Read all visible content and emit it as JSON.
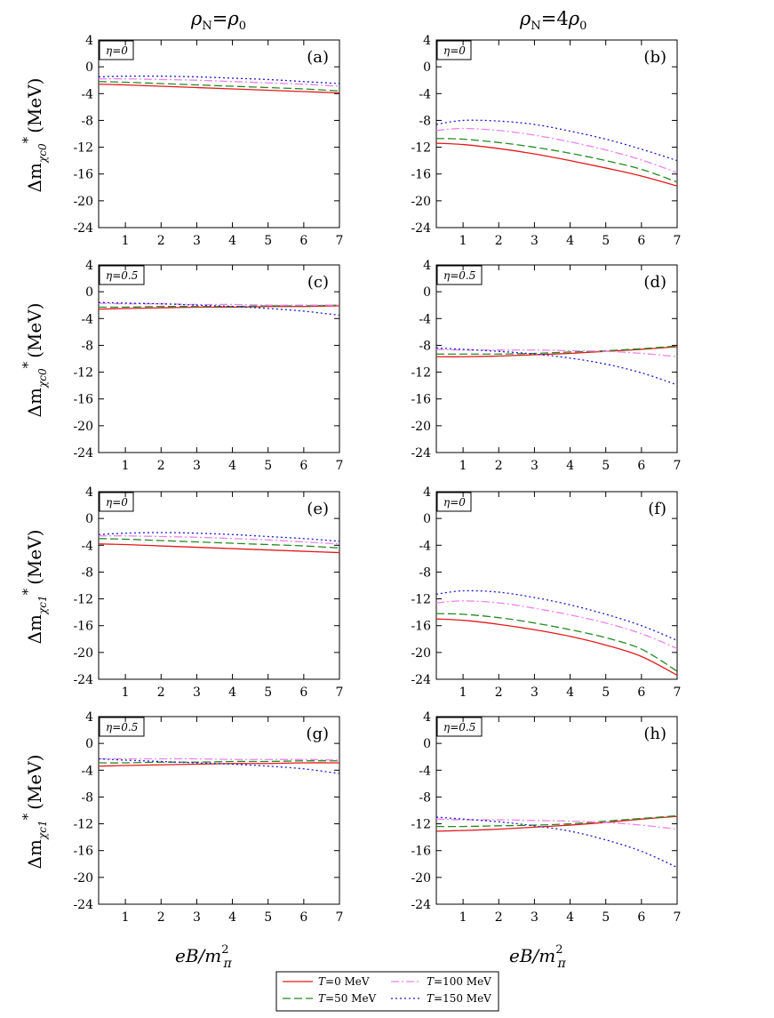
{
  "figure": {
    "col_titles": [
      {
        "rho": "ρ",
        "sub": "N",
        "eq": "=",
        "rhs": "ρ",
        "rhs_sub": "0"
      },
      {
        "rho": "ρ",
        "sub": "N",
        "eq": "=4",
        "rhs": "ρ",
        "rhs_sub": "0"
      }
    ],
    "ylabel": {
      "prefix": "Δm",
      "sup": "*",
      "unit": "(MeV)"
    },
    "ylabel_subs": [
      "χc0",
      "χc0",
      "χc1",
      "χc1"
    ],
    "xlabel": {
      "main": "eB/m",
      "sup": "2",
      "sub": "π"
    },
    "legend": [
      {
        "label": "T=0 MeV",
        "T": "T",
        "rest": "=0 MeV",
        "color": "#e41a1c",
        "dash": "solid"
      },
      {
        "label": "T=100 MeV",
        "T": "T",
        "rest": "=100 MeV",
        "color": "#ee82ee",
        "dash": "dashdot"
      },
      {
        "label": "T=50 MeV",
        "T": "T",
        "rest": "=50 MeV",
        "color": "#228b22",
        "dash": "dashed"
      },
      {
        "label": "T=150 MeV",
        "T": "T",
        "rest": "=150 MeV",
        "color": "#1a1acd",
        "dash": "dotted"
      }
    ]
  },
  "chart_data": [
    {
      "type": "line",
      "panel": "(a)",
      "eta": "η=0",
      "xlim": [
        0.25,
        7
      ],
      "ylim": [
        -24,
        4
      ],
      "xticks": [
        1,
        2,
        3,
        4,
        5,
        6,
        7
      ],
      "yticks": [
        4,
        0,
        -4,
        -8,
        -12,
        -16,
        -20,
        -24
      ],
      "x": [
        0.25,
        1,
        2,
        3,
        4,
        5,
        6,
        7
      ],
      "series": [
        {
          "name": "T=0 MeV",
          "values": [
            -2.6,
            -2.7,
            -2.9,
            -3.1,
            -3.3,
            -3.5,
            -3.7,
            -3.9
          ]
        },
        {
          "name": "T=50 MeV",
          "values": [
            -2.2,
            -2.3,
            -2.5,
            -2.7,
            -2.9,
            -3.1,
            -3.3,
            -3.6
          ]
        },
        {
          "name": "T=100 MeV",
          "values": [
            -1.8,
            -1.8,
            -1.9,
            -2.0,
            -2.2,
            -2.4,
            -2.6,
            -2.9
          ]
        },
        {
          "name": "T=150 MeV",
          "values": [
            -1.5,
            -1.4,
            -1.4,
            -1.5,
            -1.7,
            -1.9,
            -2.2,
            -2.5
          ]
        }
      ]
    },
    {
      "type": "line",
      "panel": "(b)",
      "eta": "η=0",
      "xlim": [
        0.25,
        7
      ],
      "ylim": [
        -24,
        4
      ],
      "xticks": [
        1,
        2,
        3,
        4,
        5,
        6,
        7
      ],
      "yticks": [
        4,
        0,
        -4,
        -8,
        -12,
        -16,
        -20,
        -24
      ],
      "x": [
        0.25,
        1,
        2,
        3,
        4,
        5,
        6,
        7
      ],
      "series": [
        {
          "name": "T=0 MeV",
          "values": [
            -11.4,
            -11.6,
            -12.2,
            -13.0,
            -14.0,
            -15.1,
            -16.3,
            -17.8
          ]
        },
        {
          "name": "T=50 MeV",
          "values": [
            -10.7,
            -10.8,
            -11.3,
            -12.0,
            -12.9,
            -14.0,
            -15.3,
            -17.2
          ]
        },
        {
          "name": "T=100 MeV",
          "values": [
            -9.5,
            -9.2,
            -9.5,
            -10.2,
            -11.2,
            -12.4,
            -13.9,
            -15.8
          ]
        },
        {
          "name": "T=150 MeV",
          "values": [
            -8.6,
            -8.0,
            -8.1,
            -8.6,
            -9.6,
            -10.8,
            -12.3,
            -14.0
          ]
        }
      ]
    },
    {
      "type": "line",
      "panel": "(c)",
      "eta": "η=0.5",
      "xlim": [
        0.25,
        7
      ],
      "ylim": [
        -24,
        4
      ],
      "xticks": [
        1,
        2,
        3,
        4,
        5,
        6,
        7
      ],
      "yticks": [
        4,
        0,
        -4,
        -8,
        -12,
        -16,
        -20,
        -24
      ],
      "x": [
        0.25,
        1,
        2,
        3,
        4,
        5,
        6,
        7
      ],
      "series": [
        {
          "name": "T=0 MeV",
          "values": [
            -2.6,
            -2.5,
            -2.4,
            -2.3,
            -2.3,
            -2.2,
            -2.2,
            -2.1
          ]
        },
        {
          "name": "T=50 MeV",
          "values": [
            -2.3,
            -2.3,
            -2.2,
            -2.2,
            -2.2,
            -2.1,
            -2.1,
            -2.0
          ]
        },
        {
          "name": "T=100 MeV",
          "values": [
            -1.7,
            -1.8,
            -1.8,
            -1.9,
            -1.9,
            -2.0,
            -2.0,
            -2.0
          ]
        },
        {
          "name": "T=150 MeV",
          "values": [
            -1.6,
            -1.7,
            -1.8,
            -2.0,
            -2.2,
            -2.5,
            -2.9,
            -3.5
          ]
        }
      ]
    },
    {
      "type": "line",
      "panel": "(d)",
      "eta": "η=0.5",
      "xlim": [
        0.25,
        7
      ],
      "ylim": [
        -24,
        4
      ],
      "xticks": [
        1,
        2,
        3,
        4,
        5,
        6,
        7
      ],
      "yticks": [
        4,
        0,
        -4,
        -8,
        -12,
        -16,
        -20,
        -24
      ],
      "x": [
        0.25,
        1,
        2,
        3,
        4,
        5,
        6,
        7
      ],
      "series": [
        {
          "name": "T=0 MeV",
          "values": [
            -9.7,
            -9.7,
            -9.6,
            -9.4,
            -9.2,
            -8.9,
            -8.6,
            -8.2
          ]
        },
        {
          "name": "T=50 MeV",
          "values": [
            -9.3,
            -9.3,
            -9.3,
            -9.2,
            -9.0,
            -8.8,
            -8.5,
            -8.1
          ]
        },
        {
          "name": "T=100 MeV",
          "values": [
            -8.6,
            -8.7,
            -8.7,
            -8.7,
            -8.8,
            -8.9,
            -9.2,
            -9.7
          ]
        },
        {
          "name": "T=150 MeV",
          "values": [
            -8.4,
            -8.6,
            -8.9,
            -9.3,
            -9.9,
            -10.8,
            -12.1,
            -13.9
          ]
        }
      ]
    },
    {
      "type": "line",
      "panel": "(e)",
      "eta": "η=0",
      "xlim": [
        0.25,
        7
      ],
      "ylim": [
        -24,
        4
      ],
      "xticks": [
        1,
        2,
        3,
        4,
        5,
        6,
        7
      ],
      "yticks": [
        4,
        0,
        -4,
        -8,
        -12,
        -16,
        -20,
        -24
      ],
      "x": [
        0.25,
        1,
        2,
        3,
        4,
        5,
        6,
        7
      ],
      "series": [
        {
          "name": "T=0 MeV",
          "values": [
            -3.8,
            -3.9,
            -4.1,
            -4.3,
            -4.5,
            -4.7,
            -4.9,
            -5.1
          ]
        },
        {
          "name": "T=50 MeV",
          "values": [
            -3.0,
            -3.1,
            -3.3,
            -3.5,
            -3.7,
            -3.9,
            -4.1,
            -4.4
          ]
        },
        {
          "name": "T=100 MeV",
          "values": [
            -2.6,
            -2.6,
            -2.7,
            -2.8,
            -3.0,
            -3.2,
            -3.5,
            -3.8
          ]
        },
        {
          "name": "T=150 MeV",
          "values": [
            -2.4,
            -2.2,
            -2.1,
            -2.2,
            -2.4,
            -2.7,
            -3.0,
            -3.4
          ]
        }
      ]
    },
    {
      "type": "line",
      "panel": "(f)",
      "eta": "η=0",
      "xlim": [
        0.25,
        7
      ],
      "ylim": [
        -24,
        4
      ],
      "xticks": [
        1,
        2,
        3,
        4,
        5,
        6,
        7
      ],
      "yticks": [
        4,
        0,
        -4,
        -8,
        -12,
        -16,
        -20,
        -24
      ],
      "x": [
        0.25,
        1,
        2,
        3,
        4,
        5,
        6,
        7
      ],
      "series": [
        {
          "name": "T=0 MeV",
          "values": [
            -15.0,
            -15.2,
            -15.8,
            -16.6,
            -17.6,
            -18.9,
            -20.6,
            -23.4
          ]
        },
        {
          "name": "T=50 MeV",
          "values": [
            -14.2,
            -14.3,
            -14.8,
            -15.6,
            -16.6,
            -17.8,
            -19.5,
            -22.8
          ]
        },
        {
          "name": "T=100 MeV",
          "values": [
            -12.6,
            -12.3,
            -12.6,
            -13.4,
            -14.4,
            -15.6,
            -17.2,
            -19.4
          ]
        },
        {
          "name": "T=150 MeV",
          "values": [
            -11.3,
            -10.8,
            -11.0,
            -11.8,
            -12.9,
            -14.3,
            -16.0,
            -18.2
          ]
        }
      ]
    },
    {
      "type": "line",
      "panel": "(g)",
      "eta": "η=0.5",
      "xlim": [
        0.25,
        7
      ],
      "ylim": [
        -24,
        4
      ],
      "xticks": [
        1,
        2,
        3,
        4,
        5,
        6,
        7
      ],
      "yticks": [
        4,
        0,
        -4,
        -8,
        -12,
        -16,
        -20,
        -24
      ],
      "x": [
        0.25,
        1,
        2,
        3,
        4,
        5,
        6,
        7
      ],
      "series": [
        {
          "name": "T=0 MeV",
          "values": [
            -3.4,
            -3.3,
            -3.2,
            -3.1,
            -3.0,
            -3.0,
            -2.9,
            -2.9
          ]
        },
        {
          "name": "T=50 MeV",
          "values": [
            -2.9,
            -2.9,
            -2.8,
            -2.8,
            -2.7,
            -2.7,
            -2.6,
            -2.6
          ]
        },
        {
          "name": "T=100 MeV",
          "values": [
            -2.3,
            -2.3,
            -2.3,
            -2.3,
            -2.4,
            -2.4,
            -2.4,
            -2.5
          ]
        },
        {
          "name": "T=150 MeV",
          "values": [
            -2.3,
            -2.5,
            -2.7,
            -2.9,
            -3.1,
            -3.4,
            -3.8,
            -4.5
          ]
        }
      ]
    },
    {
      "type": "line",
      "panel": "(h)",
      "eta": "η=0.5",
      "xlim": [
        0.25,
        7
      ],
      "ylim": [
        -24,
        4
      ],
      "xticks": [
        1,
        2,
        3,
        4,
        5,
        6,
        7
      ],
      "yticks": [
        4,
        0,
        -4,
        -8,
        -12,
        -16,
        -20,
        -24
      ],
      "x": [
        0.25,
        1,
        2,
        3,
        4,
        5,
        6,
        7
      ],
      "series": [
        {
          "name": "T=0 MeV",
          "values": [
            -13.1,
            -13.0,
            -12.8,
            -12.5,
            -12.2,
            -11.8,
            -11.3,
            -10.9
          ]
        },
        {
          "name": "T=50 MeV",
          "values": [
            -12.4,
            -12.4,
            -12.3,
            -12.2,
            -12.0,
            -11.6,
            -11.2,
            -10.8
          ]
        },
        {
          "name": "T=100 MeV",
          "values": [
            -11.3,
            -11.4,
            -11.4,
            -11.5,
            -11.6,
            -11.8,
            -12.2,
            -12.8
          ]
        },
        {
          "name": "T=150 MeV",
          "values": [
            -11.0,
            -11.3,
            -11.7,
            -12.3,
            -13.1,
            -14.4,
            -16.1,
            -18.5
          ]
        }
      ]
    }
  ]
}
